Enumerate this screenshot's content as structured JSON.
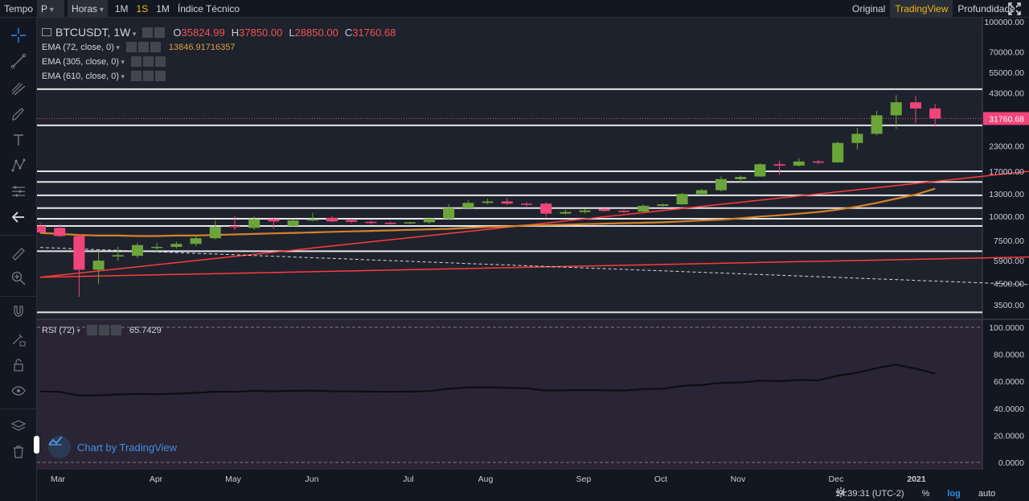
{
  "topbar": {
    "tempo_label": "Tempo",
    "symbol_select": "P",
    "interval_select": "Horas",
    "intervals": [
      "1M",
      "1S",
      "1M"
    ],
    "active_interval_index": 1,
    "indicators_label": "Índice Técnico",
    "views": [
      "Original",
      "TradingView",
      "Profundidade"
    ],
    "active_view_index": 1,
    "fullscreen_icon": "expand-icon"
  },
  "toolbar": {
    "tools": [
      "crosshair-icon",
      "trend-line-icon",
      "pitchfork-icon",
      "brush-icon",
      "text-icon",
      "pattern-icon",
      "measure-icon",
      "back-arrow-icon",
      "ruler-icon",
      "zoom-icon",
      "magnet-icon",
      "lock-drawing-icon",
      "lock-icon",
      "eye-icon",
      "layers-icon",
      "trash-icon"
    ]
  },
  "legend": {
    "symbol": "BTCUSDT, 1W",
    "ohlc": [
      {
        "k": "O",
        "v": "35824.99"
      },
      {
        "k": "H",
        "v": "37850.00"
      },
      {
        "k": "L",
        "v": "28850.00"
      },
      {
        "k": "C",
        "v": "31760.68"
      }
    ],
    "ema": [
      {
        "label": "EMA (72, close, 0)",
        "value": "13846.91716357"
      },
      {
        "label": "EMA (305, close, 0)",
        "value": ""
      },
      {
        "label": "EMA (610, close, 0)",
        "value": ""
      }
    ],
    "rsi_label": "RSI (72)",
    "rsi_value": "65.7429"
  },
  "watermark": "Chart by TradingView",
  "footer": {
    "time": "14:39:31 (UTC-2)",
    "percent": "%",
    "log": "log",
    "auto": "auto",
    "settings_icon": "gear-icon"
  },
  "colors": {
    "up": "#6ba539",
    "down": "#f0457a",
    "ema72": "#d4822a",
    "trend_red": "#ff3a3a",
    "accent": "#f0b90b",
    "background": "#1e222d",
    "rsi_bg": "#2a2534"
  },
  "chart_data": [
    {
      "type": "candlestick",
      "symbol": "BTCUSDT",
      "interval": "1W",
      "y_scale": "log",
      "y_ticks": [
        100000,
        70000,
        55000,
        43000,
        31760.68,
        23000,
        17000,
        13000,
        10000,
        7500,
        5900,
        4500,
        3500
      ],
      "y_tick_labels": [
        "100000.00",
        "70000.00",
        "55000.00",
        "43000.00",
        "31760.68",
        "23000.00",
        "17000.00",
        "13000.00",
        "10000.00",
        "7500.00",
        "5900.00",
        "4500.00",
        "3500.00"
      ],
      "last_price": 31760.68,
      "x_labels": [
        "Mar",
        "Apr",
        "May",
        "Jun",
        "Jul",
        "Aug",
        "Sep",
        "Oct",
        "Nov",
        "Dec",
        "2021"
      ],
      "candles": [
        {
          "o": 8900,
          "h": 9200,
          "l": 8200,
          "c": 8250
        },
        {
          "o": 8700,
          "h": 9100,
          "l": 7800,
          "c": 7900
        },
        {
          "o": 7900,
          "h": 8100,
          "l": 3850,
          "c": 5300
        },
        {
          "o": 5300,
          "h": 6600,
          "l": 4500,
          "c": 5900
        },
        {
          "o": 6200,
          "h": 6950,
          "l": 5900,
          "c": 6300
        },
        {
          "o": 6250,
          "h": 7300,
          "l": 6100,
          "c": 7100
        },
        {
          "o": 6900,
          "h": 7300,
          "l": 6500,
          "c": 6950
        },
        {
          "o": 6950,
          "h": 7400,
          "l": 6800,
          "c": 7200
        },
        {
          "o": 7200,
          "h": 7900,
          "l": 7000,
          "c": 7700
        },
        {
          "o": 7700,
          "h": 9500,
          "l": 7600,
          "c": 8800
        },
        {
          "o": 8900,
          "h": 10000,
          "l": 8500,
          "c": 8800
        },
        {
          "o": 8700,
          "h": 9950,
          "l": 8500,
          "c": 9650
        },
        {
          "o": 9650,
          "h": 9850,
          "l": 8600,
          "c": 9400
        },
        {
          "o": 8900,
          "h": 9650,
          "l": 8800,
          "c": 9500
        },
        {
          "o": 9500,
          "h": 10400,
          "l": 9400,
          "c": 9650
        },
        {
          "o": 9800,
          "h": 10000,
          "l": 9300,
          "c": 9400
        },
        {
          "o": 9550,
          "h": 9700,
          "l": 9200,
          "c": 9350
        },
        {
          "o": 9350,
          "h": 9500,
          "l": 9050,
          "c": 9250
        },
        {
          "o": 9250,
          "h": 9350,
          "l": 9100,
          "c": 9200
        },
        {
          "o": 9200,
          "h": 9350,
          "l": 9100,
          "c": 9300
        },
        {
          "o": 9300,
          "h": 9500,
          "l": 9150,
          "c": 9700
        },
        {
          "o": 9700,
          "h": 11500,
          "l": 9600,
          "c": 11000
        },
        {
          "o": 11000,
          "h": 12100,
          "l": 10800,
          "c": 11700
        },
        {
          "o": 11700,
          "h": 12300,
          "l": 11500,
          "c": 11900
        },
        {
          "o": 11900,
          "h": 12400,
          "l": 11400,
          "c": 11600
        },
        {
          "o": 11600,
          "h": 11800,
          "l": 11200,
          "c": 11500
        },
        {
          "o": 11600,
          "h": 11800,
          "l": 9900,
          "c": 10300
        },
        {
          "o": 10300,
          "h": 10800,
          "l": 10200,
          "c": 10500
        },
        {
          "o": 10500,
          "h": 10900,
          "l": 10300,
          "c": 10700
        },
        {
          "o": 10900,
          "h": 11000,
          "l": 10500,
          "c": 10650
        },
        {
          "o": 10650,
          "h": 10800,
          "l": 10400,
          "c": 10550
        },
        {
          "o": 10550,
          "h": 11500,
          "l": 10500,
          "c": 11300
        },
        {
          "o": 11300,
          "h": 11600,
          "l": 11200,
          "c": 11500
        },
        {
          "o": 11500,
          "h": 13200,
          "l": 11400,
          "c": 13000
        },
        {
          "o": 13000,
          "h": 13800,
          "l": 12800,
          "c": 13600
        },
        {
          "o": 13600,
          "h": 16000,
          "l": 13400,
          "c": 15500
        },
        {
          "o": 15500,
          "h": 16200,
          "l": 14800,
          "c": 15900
        },
        {
          "o": 16000,
          "h": 18800,
          "l": 15900,
          "c": 18500
        },
        {
          "o": 18500,
          "h": 19300,
          "l": 16300,
          "c": 18200
        },
        {
          "o": 18200,
          "h": 19900,
          "l": 18000,
          "c": 19100
        },
        {
          "o": 19100,
          "h": 19500,
          "l": 18500,
          "c": 18900
        },
        {
          "o": 18900,
          "h": 24200,
          "l": 18800,
          "c": 23800
        },
        {
          "o": 23800,
          "h": 28500,
          "l": 22000,
          "c": 26500
        },
        {
          "o": 26500,
          "h": 34800,
          "l": 26100,
          "c": 33000
        },
        {
          "o": 33000,
          "h": 41900,
          "l": 28100,
          "c": 38500
        },
        {
          "o": 38500,
          "h": 41500,
          "l": 30000,
          "c": 35800
        },
        {
          "o": 35824.99,
          "h": 37850,
          "l": 28850,
          "c": 31760.68
        }
      ],
      "series": [
        {
          "name": "EMA (72, close, 0)",
          "values": [
            8200,
            8100,
            8000,
            7950,
            7950,
            7900,
            7900,
            7950,
            7950,
            8000,
            8050,
            8100,
            8150,
            8200,
            8250,
            8300,
            8350,
            8400,
            8450,
            8500,
            8550,
            8600,
            8700,
            8800,
            8850,
            8950,
            9000,
            9050,
            9100,
            9150,
            9200,
            9250,
            9300,
            9400,
            9500,
            9600,
            9750,
            9950,
            10100,
            10300,
            10500,
            10800,
            11200,
            11700,
            12300,
            12900,
            13846.92
          ]
        }
      ],
      "horizontal_levels": [
        3200,
        6600,
        8900,
        9700,
        11000,
        12800,
        15000,
        17000,
        29300,
        45000
      ],
      "trend_lines": [
        {
          "from": [
            0,
            4850
          ],
          "to": [
            52,
            17500
          ]
        },
        {
          "from": [
            0,
            4850
          ],
          "to": [
            52,
            6200
          ]
        },
        {
          "from": [
            0,
            6900
          ],
          "to": [
            52,
            4400
          ]
        }
      ]
    },
    {
      "type": "line",
      "name": "RSI (72)",
      "y_ticks": [
        "100.0000",
        "80.0000",
        "60.0000",
        "40.0000",
        "20.0000",
        "0.0000"
      ],
      "ylim": [
        0,
        100
      ],
      "last_value": 65.7429,
      "values": [
        52.5,
        52.2,
        49.5,
        49.6,
        50.3,
        50.7,
        50.4,
        50.9,
        51.5,
        52.4,
        52.2,
        53.0,
        52.6,
        53.0,
        53.1,
        52.7,
        52.6,
        52.4,
        52.3,
        52.4,
        52.8,
        54.5,
        55.5,
        55.6,
        55.2,
        54.9,
        53.2,
        53.4,
        53.6,
        53.4,
        53.2,
        54.3,
        54.6,
        56.6,
        57.4,
        58.9,
        59.1,
        60.5,
        60.1,
        61.0,
        60.7,
        64.2,
        66.3,
        69.8,
        72.4,
        69.4,
        65.74
      ]
    }
  ]
}
